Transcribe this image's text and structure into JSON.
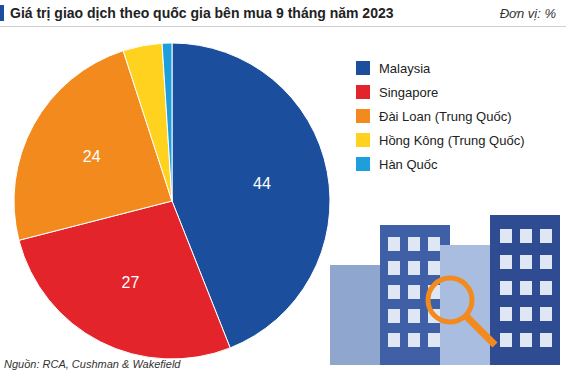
{
  "chart_data": {
    "type": "pie",
    "title": "Giá trị giao dịch theo quốc gia bên mua 9 tháng năm 2023",
    "subtitle": "Đơn vị: %",
    "source": "Nguồn: RCA, Cushman & Wakefield",
    "categories": [
      "Malaysia",
      "Singapore",
      "Đài Loan (Trung Quốc)",
      "Hồng Kông (Trung Quốc)",
      "Hàn Quốc"
    ],
    "values": [
      44,
      27,
      24,
      4,
      1
    ],
    "value_labels": [
      "44",
      "27",
      "24",
      null,
      null
    ],
    "colors": [
      "#1b4f9e",
      "#e3242b",
      "#f28a1e",
      "#ffd21f",
      "#1d9fdc"
    ],
    "data_labels": true
  }
}
